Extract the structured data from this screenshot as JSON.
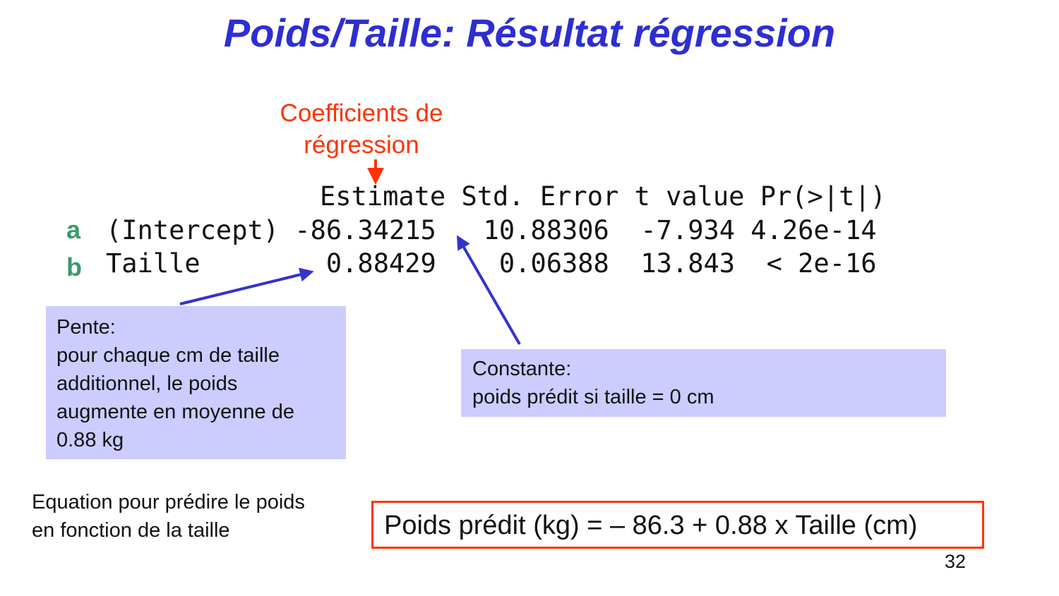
{
  "title": "Poids/Taille: Résultat régression",
  "coef_label": [
    "Coefficients de",
    "régression"
  ],
  "table": {
    "header": "Estimate Std. Error t value Pr(>|t|)",
    "rows": [
      {
        "letter": "a",
        "text": "(Intercept) -86.34215   10.88306  -7.934 4.26e-14"
      },
      {
        "letter": "b",
        "text": "Taille        0.88429    0.06388  13.843  < 2e-16"
      }
    ]
  },
  "pente_box": {
    "lines": [
      "Pente:",
      "pour chaque cm de taille",
      "additionnel, le poids",
      "augmente en moyenne de",
      "0.88 kg"
    ]
  },
  "constante_box": {
    "lines": [
      "Constante:",
      "poids prédit si taille = 0 cm"
    ]
  },
  "equation_caption": [
    "Equation pour prédire le poids",
    "en fonction de la taille"
  ],
  "equation": "Poids prédit (kg) = – 86.3 + 0.88 x Taille (cm)",
  "page_number": "32",
  "colors": {
    "title": "#2e2ed1",
    "label": "#ff3300",
    "row_letter": "#3a9a6a",
    "box_fill": "#ccccff",
    "arrow": "#3333cc"
  }
}
